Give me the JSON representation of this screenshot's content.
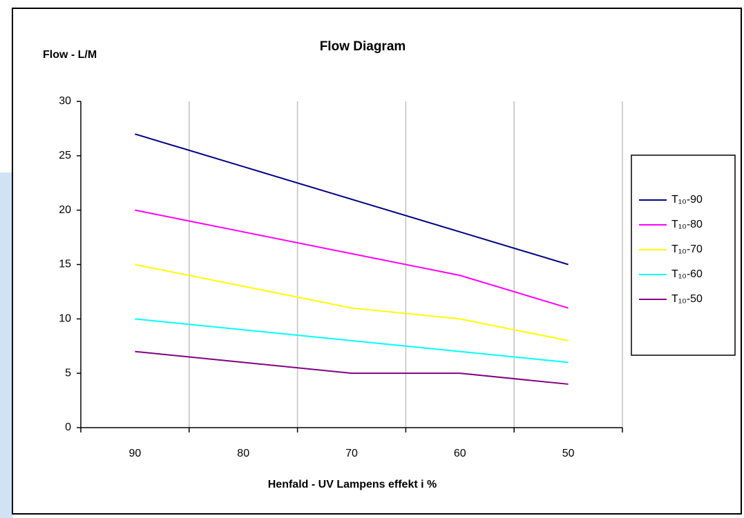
{
  "chart_data": {
    "type": "line",
    "title": "Flow Diagram",
    "y_label": "Flow - L/M",
    "x_label": "Henfald - UV Lampens effekt i %",
    "categories": [
      "90",
      "80",
      "70",
      "60",
      "50"
    ],
    "series": [
      {
        "name": "T₁₀-90",
        "color": "#000080",
        "values": [
          27,
          24,
          21,
          18,
          15
        ]
      },
      {
        "name": "T₁₀-80",
        "color": "#ff00ff",
        "values": [
          20,
          18,
          16,
          14,
          11
        ]
      },
      {
        "name": "T₁₀-70",
        "color": "#ffff00",
        "values": [
          15,
          13,
          11,
          10,
          8
        ]
      },
      {
        "name": "T₁₀-60",
        "color": "#00ffff",
        "values": [
          10,
          9,
          8,
          7,
          6
        ]
      },
      {
        "name": "T₁₀-50",
        "color": "#800080",
        "values": [
          7,
          6,
          5,
          5,
          4
        ]
      }
    ],
    "ylim": [
      0,
      30
    ],
    "yticks": [
      0,
      5,
      10,
      15,
      20,
      25,
      30
    ],
    "grid": true,
    "legend": "right"
  }
}
